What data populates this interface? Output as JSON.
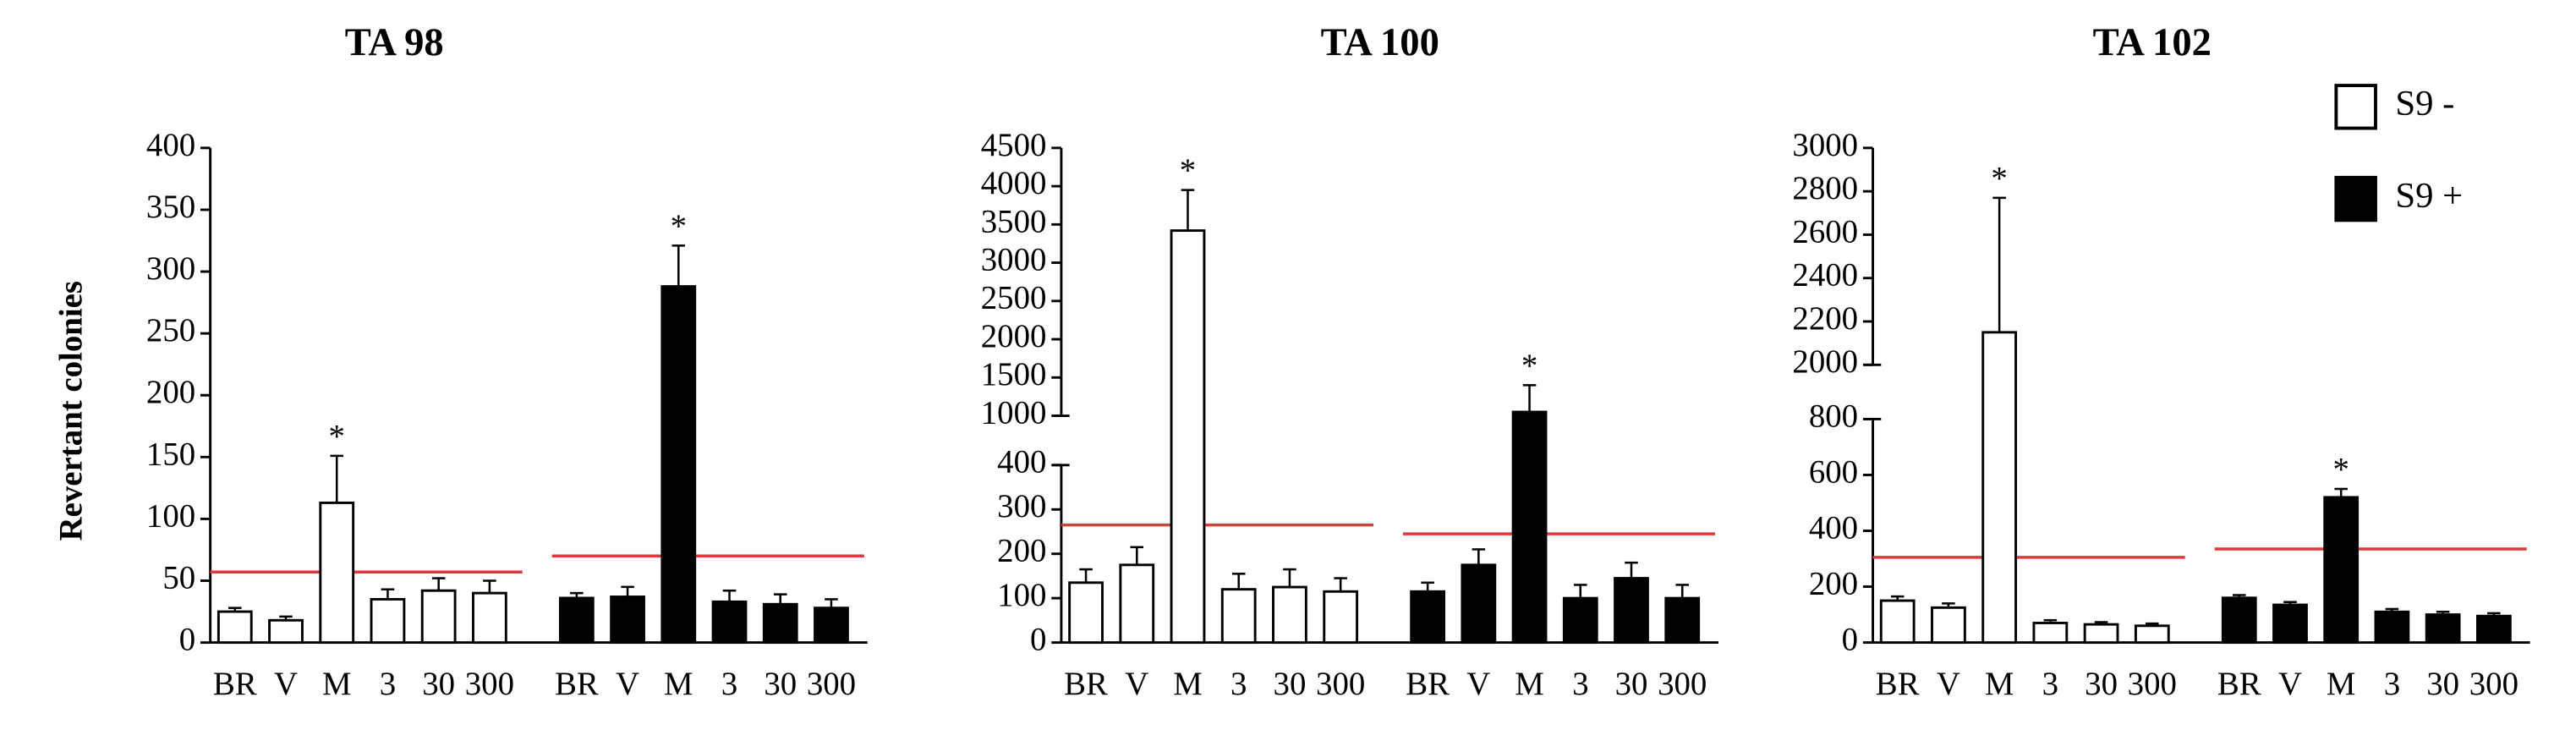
{
  "chart_data": [
    {
      "type": "bar",
      "title": "TA 98",
      "ylabel": "Revertant colonies",
      "categories": [
        "BR",
        "V",
        "M",
        "3",
        "30",
        "300"
      ],
      "y_segments": [
        {
          "ylim": [
            0,
            400
          ],
          "yticks": [
            0,
            50,
            100,
            150,
            200,
            250,
            300,
            350,
            400
          ]
        }
      ],
      "threshold_color": "#e0393e",
      "series": [
        {
          "name": "S9 -",
          "color": "#ffffff",
          "values": [
            25,
            18,
            113,
            35,
            42,
            40
          ],
          "errors": [
            3,
            3,
            38,
            8,
            10,
            10
          ],
          "significance": [
            null,
            null,
            "*",
            null,
            null,
            null
          ],
          "threshold": 57
        },
        {
          "name": "S9 +",
          "color": "#000000",
          "values": [
            36,
            37,
            288,
            33,
            31,
            28
          ],
          "errors": [
            4,
            8,
            33,
            9,
            8,
            7
          ],
          "significance": [
            null,
            null,
            "*",
            null,
            null,
            null
          ],
          "threshold": 70
        }
      ]
    },
    {
      "type": "bar",
      "title": "TA 100",
      "categories": [
        "BR",
        "V",
        "M",
        "3",
        "30",
        "300"
      ],
      "y_segments": [
        {
          "ylim": [
            0,
            400
          ],
          "yticks": [
            0,
            100,
            200,
            300,
            400
          ]
        },
        {
          "ylim": [
            1000,
            4500
          ],
          "yticks": [
            1000,
            1500,
            2000,
            2500,
            3000,
            3500,
            4000,
            4500
          ]
        }
      ],
      "threshold_color": "#e0393e",
      "series": [
        {
          "name": "S9 -",
          "color": "#ffffff",
          "values": [
            135,
            175,
            3420,
            120,
            125,
            115
          ],
          "errors": [
            30,
            40,
            530,
            35,
            40,
            30
          ],
          "significance": [
            null,
            null,
            "*",
            null,
            null,
            null
          ],
          "threshold": 265
        },
        {
          "name": "S9 +",
          "color": "#000000",
          "values": [
            115,
            175,
            1050,
            100,
            145,
            100
          ],
          "errors": [
            20,
            35,
            350,
            30,
            35,
            30
          ],
          "significance": [
            null,
            null,
            "*",
            null,
            null,
            null
          ],
          "threshold": 245
        }
      ]
    },
    {
      "type": "bar",
      "title": "TA 102",
      "legend": "top-right",
      "categories": [
        "BR",
        "V",
        "M",
        "3",
        "30",
        "300"
      ],
      "y_segments": [
        {
          "ylim": [
            0,
            800
          ],
          "yticks": [
            0,
            200,
            400,
            600,
            800
          ]
        },
        {
          "ylim": [
            2000,
            3000
          ],
          "yticks": [
            2000,
            2200,
            2400,
            2600,
            2800,
            3000
          ]
        }
      ],
      "threshold_color": "#e0393e",
      "series": [
        {
          "name": "S9 -",
          "color": "#ffffff",
          "values": [
            150,
            125,
            2150,
            70,
            65,
            60
          ],
          "errors": [
            15,
            15,
            620,
            10,
            8,
            8
          ],
          "significance": [
            null,
            null,
            "*",
            null,
            null,
            null
          ],
          "threshold": 305
        },
        {
          "name": "S9 +",
          "color": "#000000",
          "values": [
            160,
            135,
            520,
            110,
            100,
            95
          ],
          "errors": [
            10,
            10,
            30,
            10,
            10,
            10
          ],
          "significance": [
            null,
            null,
            "*",
            null,
            null,
            null
          ],
          "threshold": 335
        }
      ]
    }
  ]
}
